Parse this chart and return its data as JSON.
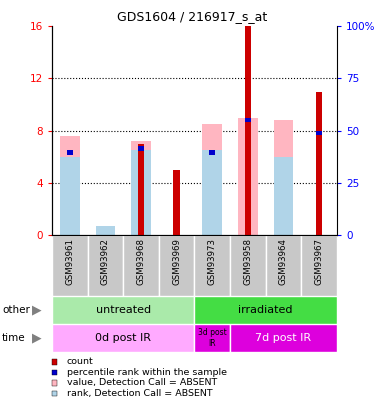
{
  "title": "GDS1604 / 216917_s_at",
  "samples": [
    "GSM93961",
    "GSM93962",
    "GSM93968",
    "GSM93969",
    "GSM93973",
    "GSM93958",
    "GSM93964",
    "GSM93967"
  ],
  "count_values": [
    0,
    0,
    7.0,
    5.0,
    0,
    16.0,
    0,
    11.0
  ],
  "percentile_values": [
    6.5,
    0,
    6.8,
    0,
    6.5,
    9.0,
    0,
    8.0
  ],
  "pink_bar_values": [
    7.6,
    0,
    7.2,
    0,
    8.5,
    9.0,
    8.8,
    0
  ],
  "light_blue_bar_values": [
    6.0,
    0.7,
    6.5,
    0,
    6.5,
    0,
    6.0,
    0
  ],
  "ylim": [
    0,
    16
  ],
  "y2lim": [
    0,
    100
  ],
  "yticks": [
    0,
    4,
    8,
    12,
    16
  ],
  "ytick_labels": [
    "0",
    "4",
    "8",
    "12",
    "16"
  ],
  "y2ticks": [
    0,
    25,
    50,
    75,
    100
  ],
  "y2tick_labels": [
    "0",
    "25",
    "50",
    "75",
    "100%"
  ],
  "legend_items": [
    {
      "label": "count",
      "color": "#CC0000"
    },
    {
      "label": "percentile rank within the sample",
      "color": "#0000CC"
    },
    {
      "label": "value, Detection Call = ABSENT",
      "color": "#FFB6C1"
    },
    {
      "label": "rank, Detection Call = ABSENT",
      "color": "#B0D4E8"
    }
  ],
  "count_color": "#CC0000",
  "percentile_color": "#0000CC",
  "pink_color": "#FFB6C1",
  "light_blue_color": "#B0D4E8",
  "bg_color": "#C8C8C8",
  "untreated_color": "#AAEAAA",
  "irradiated_color": "#44DD44",
  "time_light_color": "#FFAAFF",
  "time_dark_color": "#DD00DD"
}
